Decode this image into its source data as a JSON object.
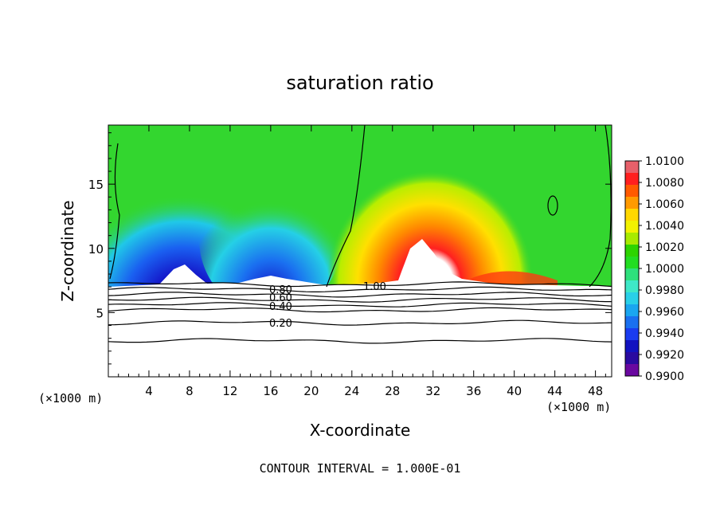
{
  "chart_data": {
    "type": "heatmap",
    "title": "saturation ratio",
    "xlabel": "X-coordinate",
    "ylabel": "Z-coordinate",
    "x_unit_left": "(×1000 m)",
    "x_unit_right": "(×1000 m)",
    "x_ticks": [
      4,
      8,
      12,
      16,
      20,
      24,
      28,
      32,
      36,
      40,
      44,
      48
    ],
    "y_ticks": [
      5,
      10,
      15
    ],
    "xlim": [
      0,
      49.6
    ],
    "ylim": [
      0,
      19.6
    ],
    "footer": "CONTOUR INTERVAL = 1.000E-01",
    "colorbar": {
      "labels": [
        "1.0100",
        "1.0080",
        "1.0060",
        "1.0040",
        "1.0020",
        "1.0000",
        "0.9980",
        "0.9960",
        "0.9940",
        "0.9920",
        "0.9900"
      ],
      "colors": [
        "#e7606a",
        "#ff1f1f",
        "#ff5a00",
        "#ff9a00",
        "#ffd800",
        "#f2f200",
        "#a8ea00",
        "#2dd400",
        "#22dd22",
        "#2ee07c",
        "#3ee8c8",
        "#29d0e8",
        "#1aa6f0",
        "#1a70f0",
        "#1a3cf0",
        "#1212c0",
        "#2a0aa0",
        "#6a08a0"
      ]
    },
    "contour_labels": [
      "0.20",
      "0.40",
      "0.60",
      "0.80",
      "1.00"
    ],
    "contour_levels_z": [
      2.8,
      4.2,
      5.2,
      5.6,
      6.0,
      6.4,
      6.8,
      7.2
    ]
  }
}
